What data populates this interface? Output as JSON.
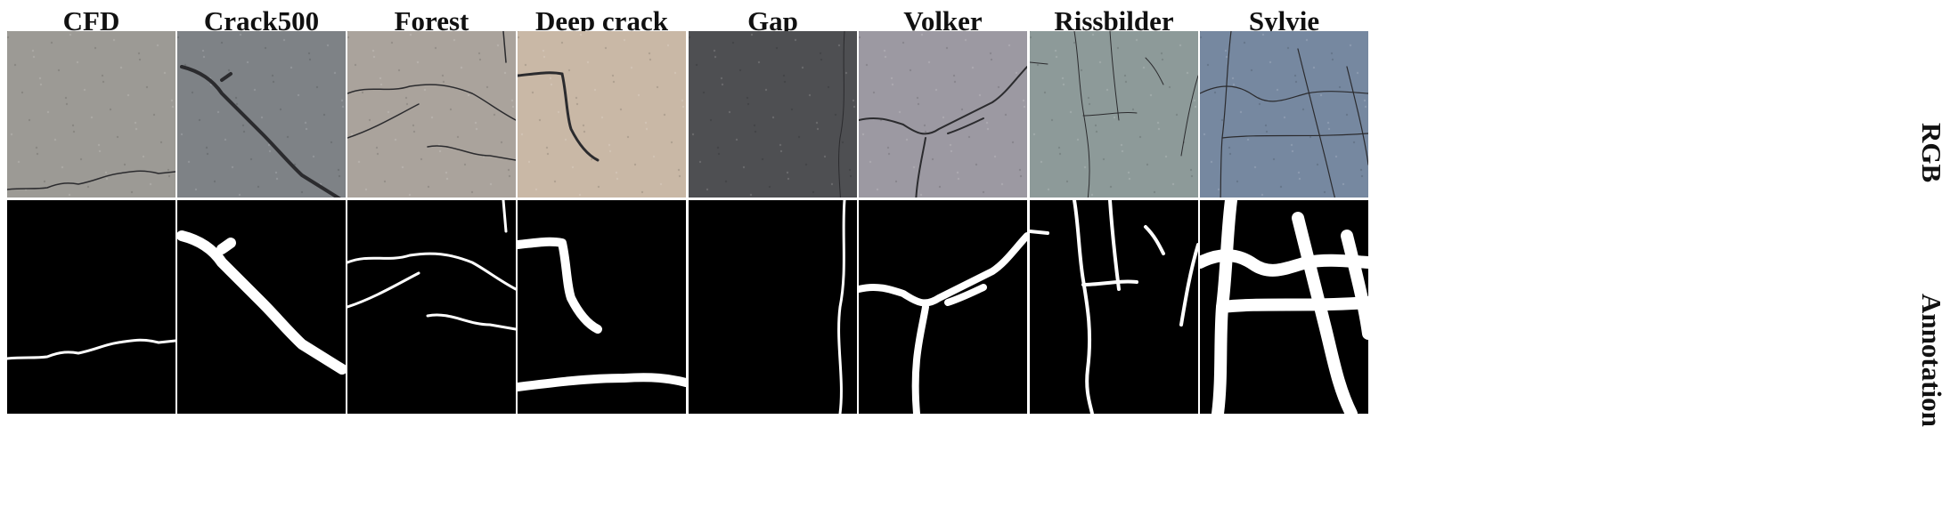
{
  "figure": {
    "columns": [
      {
        "id": "cfd",
        "label": "CFD",
        "rgb_color": "#9c9a95"
      },
      {
        "id": "crack500",
        "label": "Crack500",
        "rgb_color": "#7e8286"
      },
      {
        "id": "forest",
        "label": "Forest",
        "rgb_color": "#aaa39c"
      },
      {
        "id": "deepcrack",
        "label": "Deep crack",
        "rgb_color": "#c9b8a6"
      },
      {
        "id": "gap",
        "label": "Gap",
        "rgb_color": "#4e4f52"
      },
      {
        "id": "volker",
        "label": "Volker",
        "rgb_color": "#9c99a2"
      },
      {
        "id": "rissbilder",
        "label": "Rissbilder",
        "rgb_color": "#8d9a99"
      },
      {
        "id": "sylvie",
        "label": "Sylvie",
        "rgb_color": "#7688a0"
      }
    ],
    "rows": [
      {
        "id": "rgb",
        "label": "RGB"
      },
      {
        "id": "annotation",
        "label": "Annotation"
      }
    ]
  }
}
